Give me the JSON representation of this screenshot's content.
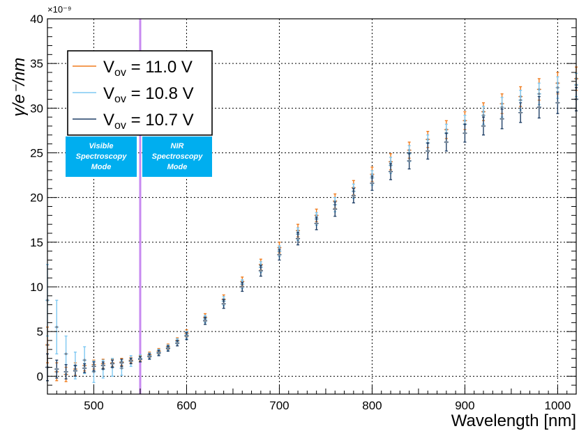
{
  "chart_data": {
    "type": "scatter",
    "title": "",
    "xlabel": "Wavelength [nm]",
    "ylabel": "γ/e⁻/nm",
    "y_scale_label": "×10⁻⁹",
    "xlim": [
      450,
      1020
    ],
    "ylim": [
      -2,
      40
    ],
    "x_ticks": [
      500,
      600,
      700,
      800,
      900,
      1000
    ],
    "y_ticks": [
      0,
      5,
      10,
      15,
      20,
      25,
      30,
      35,
      40
    ],
    "grid": true,
    "legend_position": "top-left",
    "colors": {
      "orange": "#f07c1f",
      "lightblue": "#7ec8f2",
      "darkblue": "#1f3f66",
      "marker": "#7a8a99",
      "divider": "#c88af0",
      "mode_box": "#00aeef"
    },
    "divider_x": 550,
    "mode_boxes": [
      {
        "lines": [
          "Visible",
          "Spectroscopy",
          "Mode"
        ]
      },
      {
        "lines": [
          "NIR",
          "Spectroscopy",
          "Mode"
        ]
      }
    ],
    "series": [
      {
        "name": "V_ov = 11.0 V",
        "label_main": "V",
        "label_sub": "ov",
        "label_value": " = 11.0 V",
        "color": "#f07c1f",
        "x": [
          450,
          460,
          470,
          480,
          490,
          500,
          510,
          520,
          530,
          540,
          550,
          560,
          570,
          580,
          590,
          600,
          620,
          640,
          660,
          680,
          700,
          720,
          740,
          760,
          780,
          800,
          820,
          840,
          860,
          880,
          900,
          920,
          940,
          960,
          980,
          1000,
          1020
        ],
        "y": [
          3.5,
          0.5,
          0.2,
          0.8,
          1.2,
          1.3,
          1.4,
          1.5,
          1.6,
          1.8,
          2.0,
          2.4,
          2.8,
          3.3,
          4.0,
          4.8,
          6.6,
          8.6,
          10.6,
          12.5,
          14.4,
          16.3,
          18.0,
          19.6,
          21.1,
          22.6,
          24.0,
          25.3,
          26.5,
          27.6,
          28.6,
          29.6,
          30.5,
          31.3,
          32.1,
          32.8,
          33.3
        ],
        "err": [
          2.0,
          1.0,
          0.8,
          0.7,
          0.6,
          0.5,
          0.5,
          0.4,
          0.4,
          0.3,
          0.3,
          0.3,
          0.3,
          0.3,
          0.3,
          0.4,
          0.4,
          0.5,
          0.5,
          0.6,
          0.6,
          0.7,
          0.7,
          0.8,
          0.8,
          0.8,
          0.9,
          0.9,
          0.9,
          1.0,
          1.0,
          1.0,
          1.1,
          1.1,
          1.2,
          1.2,
          1.3
        ]
      },
      {
        "name": "V_ov = 10.8 V",
        "label_main": "V",
        "label_sub": "ov",
        "label_value": " = 10.8 V",
        "color": "#7ec8f2",
        "x": [
          450,
          460,
          470,
          480,
          490,
          500,
          510,
          520,
          530,
          540,
          550,
          560,
          570,
          580,
          590,
          600,
          620,
          640,
          660,
          680,
          700,
          720,
          740,
          760,
          780,
          800,
          820,
          840,
          860,
          880,
          900,
          920,
          940,
          960,
          980,
          1000,
          1020
        ],
        "y": [
          8.5,
          5.5,
          2.5,
          1.2,
          1.8,
          0.5,
          0.8,
          1.0,
          0.9,
          1.7,
          2.0,
          2.3,
          2.7,
          3.2,
          3.9,
          4.6,
          6.4,
          8.4,
          10.3,
          12.2,
          14.0,
          15.9,
          17.6,
          19.2,
          20.7,
          22.2,
          23.6,
          24.9,
          26.1,
          27.2,
          28.2,
          29.2,
          30.1,
          30.9,
          31.6,
          32.3,
          32.6
        ],
        "err": [
          4.0,
          3.0,
          2.0,
          1.5,
          1.5,
          1.2,
          1.0,
          1.0,
          0.8,
          0.6,
          0.4,
          0.3,
          0.3,
          0.3,
          0.3,
          0.4,
          0.4,
          0.5,
          0.5,
          0.6,
          0.6,
          0.7,
          0.7,
          0.8,
          0.8,
          0.8,
          0.9,
          0.9,
          0.9,
          1.0,
          1.0,
          1.0,
          1.1,
          1.1,
          1.2,
          1.2,
          1.3
        ]
      },
      {
        "name": "V_ov = 10.7 V",
        "label_main": "V",
        "label_sub": "ov",
        "label_value": " = 10.7 V",
        "color": "#1f3f66",
        "x": [
          450,
          460,
          470,
          480,
          490,
          500,
          510,
          520,
          530,
          540,
          550,
          560,
          570,
          580,
          590,
          600,
          620,
          640,
          660,
          680,
          700,
          720,
          740,
          760,
          780,
          800,
          820,
          840,
          860,
          880,
          900,
          920,
          940,
          960,
          980,
          1000,
          1020
        ],
        "y": [
          1.0,
          0.8,
          0.5,
          0.6,
          0.9,
          1.1,
          1.2,
          1.4,
          1.5,
          1.7,
          1.9,
          2.2,
          2.6,
          3.1,
          3.7,
          4.5,
          6.2,
          8.1,
          10.0,
          11.8,
          13.6,
          15.4,
          17.1,
          18.7,
          20.2,
          21.6,
          22.9,
          24.1,
          25.2,
          26.2,
          27.2,
          28.0,
          28.8,
          29.5,
          30.1,
          30.6,
          31.0
        ],
        "err": [
          1.5,
          1.0,
          0.8,
          0.6,
          0.5,
          0.5,
          0.4,
          0.4,
          0.4,
          0.3,
          0.3,
          0.3,
          0.3,
          0.3,
          0.3,
          0.4,
          0.4,
          0.5,
          0.5,
          0.6,
          0.6,
          0.7,
          0.7,
          0.8,
          0.8,
          0.8,
          0.9,
          0.9,
          0.9,
          1.0,
          1.0,
          1.0,
          1.1,
          1.1,
          1.2,
          1.2,
          1.3
        ]
      }
    ]
  }
}
